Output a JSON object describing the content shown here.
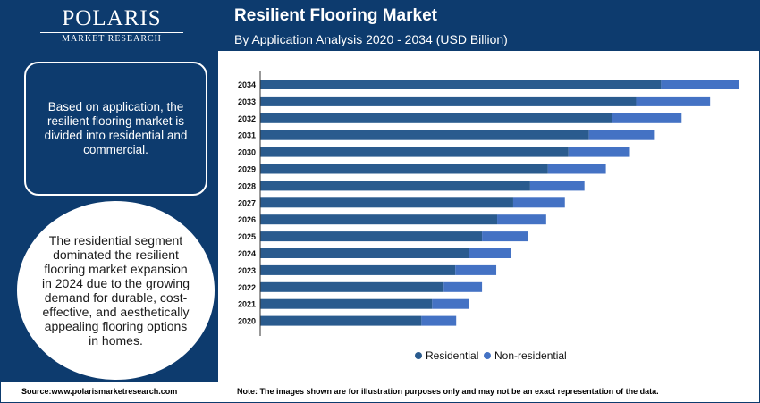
{
  "brand": {
    "name": "POLARIS",
    "tagline": "MARKET RESEARCH"
  },
  "panel": {
    "box_text": "Based on application, the resilient flooring market is divided into residential and commercial.",
    "circle_text": "The residential segment dominated the resilient flooring market expansion in 2024 due to the growing demand for durable, cost-effective, and aesthetically appealing flooring options in homes."
  },
  "footer": {
    "source": "Source:www.polarismarketresearch.com",
    "note": "Note: The images shown are for illustration purposes only and may not be an exact representation of the data."
  },
  "colors": {
    "residential": "#2a5b8e",
    "non_residential": "#4472c4",
    "navy": "#0d3b6e"
  },
  "chart_data": {
    "type": "bar",
    "orientation": "horizontal",
    "stacked": true,
    "title": "Resilient Flooring Market",
    "subtitle": "By Application Analysis 2020 - 2034 (USD Billion)",
    "categories": [
      "2034",
      "2033",
      "2032",
      "2031",
      "2030",
      "2029",
      "2028",
      "2027",
      "2026",
      "2025",
      "2024",
      "2023",
      "2022",
      "2021",
      "2020"
    ],
    "series": [
      {
        "name": "Residential",
        "color": "#2a5b8e",
        "values": [
          45.0,
          42.2,
          39.5,
          36.9,
          34.6,
          32.3,
          30.3,
          28.4,
          26.6,
          24.9,
          23.4,
          21.9,
          20.6,
          19.3,
          18.1
        ]
      },
      {
        "name": "Non-residential",
        "color": "#4472c4",
        "values": [
          8.7,
          8.3,
          7.8,
          7.4,
          6.9,
          6.5,
          6.1,
          5.8,
          5.5,
          5.2,
          4.8,
          4.6,
          4.3,
          4.1,
          3.9
        ]
      }
    ],
    "xlim": [
      0,
      55
    ],
    "legend": "bottom",
    "grid": false
  }
}
